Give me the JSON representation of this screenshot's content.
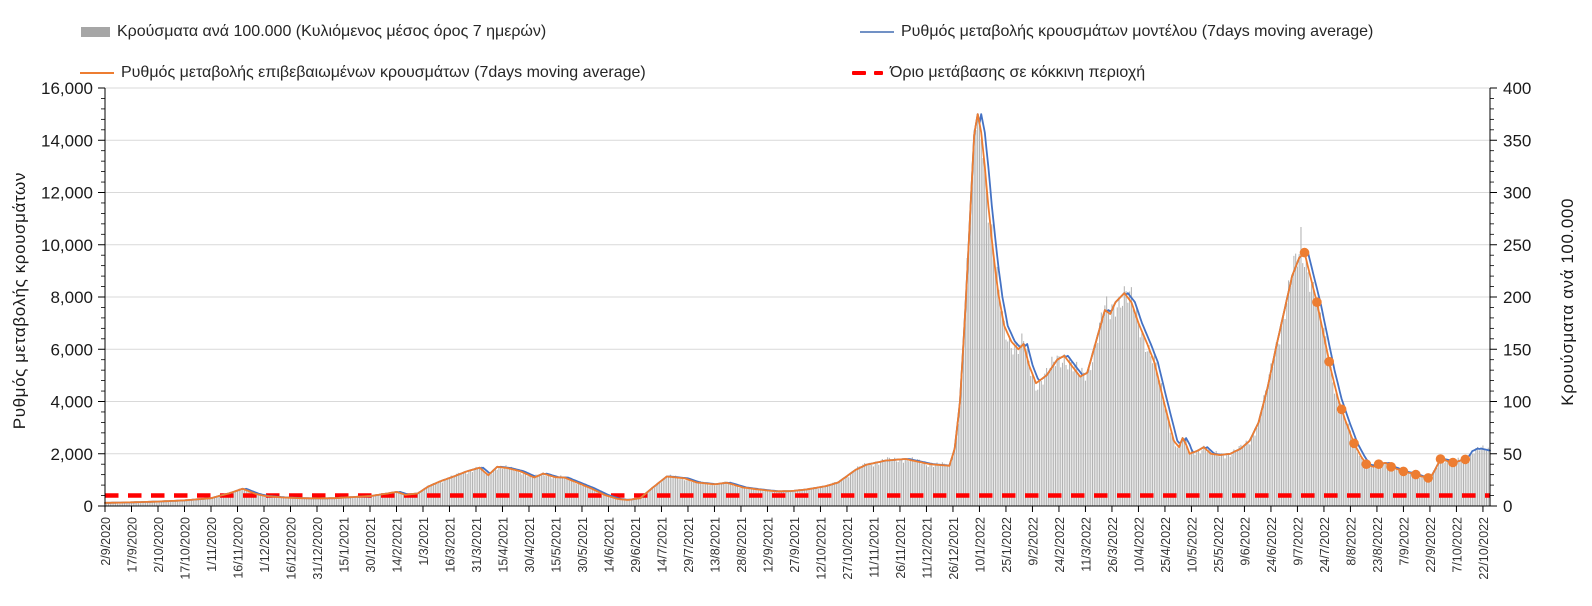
{
  "legend": {
    "items": [
      {
        "label": "Κρούσματα ανά 100.000 (Κυλιόμενος μέσος όρος 7 ημερών)",
        "swatch": "bar",
        "color": "#a6a6a6"
      },
      {
        "label": "Ρυθμός μεταβολής κρουσμάτων μοντέλου (7days moving average)",
        "swatch": "line",
        "color": "#4472c4"
      },
      {
        "label": "Ρυθμός μεταβολής επιβεβαιωμένων κρουσμάτων (7days moving average)",
        "swatch": "line",
        "color": "#ed7d31"
      },
      {
        "label": "Όριο μετάβασης σε κόκκινη περιοχή",
        "swatch": "dash",
        "color": "#ff0000"
      }
    ]
  },
  "chart_data": {
    "type": "bar",
    "subtype": "combo-daily-bars-plus-lines",
    "title": "",
    "left_axis": {
      "title": "Ρυθμός μεταβολής κρουσμάτων",
      "min": 0,
      "max": 16000,
      "step": 2000,
      "minor_step": 400,
      "tick_labels": [
        "0",
        "2,000",
        "4,000",
        "6,000",
        "8,000",
        "10,000",
        "12,000",
        "14,000",
        "16,000"
      ]
    },
    "right_axis": {
      "title": "Κρουύσματα ανά 100.000",
      "min": 0,
      "max": 400,
      "step": 50,
      "minor_step": 10,
      "tick_labels": [
        "0",
        "50",
        "100",
        "150",
        "200",
        "250",
        "300",
        "350",
        "400"
      ]
    },
    "x_axis": {
      "start_date": "2/9/2020",
      "end_date": "22/10/2022",
      "tick_interval_days": 15,
      "tick_labels": [
        "2/9/2020",
        "17/9/2020",
        "2/10/2020",
        "17/10/2020",
        "1/11/2020",
        "16/11/2020",
        "1/12/2020",
        "16/12/2020",
        "31/12/2020",
        "15/1/2021",
        "30/1/2021",
        "14/2/2021",
        "1/3/2021",
        "16/3/2021",
        "31/3/2021",
        "15/4/2021",
        "30/4/2021",
        "15/5/2021",
        "30/5/2021",
        "14/6/2021",
        "29/6/2021",
        "14/7/2021",
        "29/7/2021",
        "13/8/2021",
        "28/8/2021",
        "12/9/2021",
        "27/9/2021",
        "12/10/2021",
        "27/10/2021",
        "11/11/2021",
        "26/11/2021",
        "11/12/2021",
        "26/12/2021",
        "10/1/2022",
        "25/1/2022",
        "9/2/2022",
        "24/2/2022",
        "11/3/2022",
        "26/3/2022",
        "10/4/2022",
        "25/4/2022",
        "10/5/2022",
        "25/5/2022",
        "9/6/2022",
        "24/6/2022",
        "9/7/2022",
        "24/7/2022",
        "8/8/2022",
        "23/8/2022",
        "7/9/2022",
        "22/9/2022",
        "7/10/2022",
        "22/10/2022"
      ]
    },
    "grid": {
      "horizontal": true,
      "vertical": false,
      "color": "#d9d9d9"
    },
    "threshold": {
      "name": "Όριο μετάβασης σε κόκκινη περιοχή",
      "value_right_axis": 10,
      "color": "#ff0000",
      "style": "dashed"
    },
    "days_total": 784,
    "rate_keypoints": [
      [
        0,
        120
      ],
      [
        15,
        140
      ],
      [
        30,
        170
      ],
      [
        45,
        215
      ],
      [
        60,
        300
      ],
      [
        70,
        480
      ],
      [
        78,
        660
      ],
      [
        85,
        470
      ],
      [
        90,
        390
      ],
      [
        100,
        330
      ],
      [
        110,
        300
      ],
      [
        120,
        290
      ],
      [
        130,
        300
      ],
      [
        140,
        340
      ],
      [
        150,
        380
      ],
      [
        160,
        480
      ],
      [
        165,
        540
      ],
      [
        170,
        430
      ],
      [
        177,
        480
      ],
      [
        183,
        745
      ],
      [
        190,
        950
      ],
      [
        197,
        1120
      ],
      [
        205,
        1330
      ],
      [
        212,
        1465
      ],
      [
        217,
        1180
      ],
      [
        222,
        1500
      ],
      [
        228,
        1450
      ],
      [
        235,
        1330
      ],
      [
        243,
        1090
      ],
      [
        248,
        1240
      ],
      [
        255,
        1100
      ],
      [
        260,
        1090
      ],
      [
        267,
        900
      ],
      [
        275,
        680
      ],
      [
        283,
        420
      ],
      [
        290,
        270
      ],
      [
        296,
        230
      ],
      [
        303,
        300
      ],
      [
        310,
        700
      ],
      [
        318,
        1130
      ],
      [
        328,
        1060
      ],
      [
        335,
        900
      ],
      [
        345,
        830
      ],
      [
        352,
        890
      ],
      [
        361,
        710
      ],
      [
        370,
        630
      ],
      [
        380,
        560
      ],
      [
        388,
        570
      ],
      [
        397,
        630
      ],
      [
        408,
        760
      ],
      [
        415,
        900
      ],
      [
        425,
        1390
      ],
      [
        431,
        1580
      ],
      [
        442,
        1740
      ],
      [
        453,
        1800
      ],
      [
        460,
        1700
      ],
      [
        467,
        1600
      ],
      [
        474,
        1560
      ],
      [
        478,
        1540
      ],
      [
        481,
        2200
      ],
      [
        484,
        4000
      ],
      [
        487,
        7500
      ],
      [
        490,
        11500
      ],
      [
        492,
        14200
      ],
      [
        494,
        15000
      ],
      [
        496,
        14300
      ],
      [
        498,
        13000
      ],
      [
        500,
        11500
      ],
      [
        502,
        10200
      ],
      [
        504,
        9000
      ],
      [
        506,
        8000
      ],
      [
        509,
        6900
      ],
      [
        513,
        6300
      ],
      [
        517,
        6000
      ],
      [
        520,
        6200
      ],
      [
        523,
        5400
      ],
      [
        527,
        4700
      ],
      [
        533,
        5000
      ],
      [
        539,
        5600
      ],
      [
        543,
        5750
      ],
      [
        548,
        5300
      ],
      [
        552,
        4950
      ],
      [
        556,
        5100
      ],
      [
        561,
        6300
      ],
      [
        566,
        7500
      ],
      [
        569,
        7350
      ],
      [
        572,
        7800
      ],
      [
        577,
        8150
      ],
      [
        581,
        7800
      ],
      [
        585,
        7000
      ],
      [
        590,
        6200
      ],
      [
        594,
        5500
      ],
      [
        599,
        4100
      ],
      [
        602,
        3300
      ],
      [
        605,
        2500
      ],
      [
        608,
        2250
      ],
      [
        610,
        2600
      ],
      [
        612,
        2350
      ],
      [
        614,
        2000
      ],
      [
        618,
        2100
      ],
      [
        622,
        2250
      ],
      [
        626,
        2000
      ],
      [
        631,
        1950
      ],
      [
        637,
        2000
      ],
      [
        643,
        2200
      ],
      [
        648,
        2500
      ],
      [
        653,
        3200
      ],
      [
        658,
        4500
      ],
      [
        663,
        6100
      ],
      [
        668,
        7600
      ],
      [
        672,
        8800
      ],
      [
        676,
        9500
      ],
      [
        679,
        9700
      ],
      [
        683,
        8600
      ],
      [
        686,
        7800
      ],
      [
        690,
        6500
      ],
      [
        694,
        5200
      ],
      [
        698,
        4100
      ],
      [
        702,
        3300
      ],
      [
        707,
        2400
      ],
      [
        711,
        1900
      ],
      [
        714,
        1600
      ],
      [
        718,
        1500
      ],
      [
        721,
        1600
      ],
      [
        725,
        1650
      ],
      [
        728,
        1500
      ],
      [
        732,
        1400
      ],
      [
        736,
        1300
      ],
      [
        740,
        1250
      ],
      [
        744,
        1150
      ],
      [
        748,
        1100
      ],
      [
        750,
        1050
      ],
      [
        753,
        1400
      ],
      [
        756,
        1800
      ],
      [
        759,
        1750
      ],
      [
        762,
        1650
      ],
      [
        765,
        1700
      ],
      [
        768,
        1750
      ],
      [
        771,
        1800
      ],
      [
        774,
        2100
      ],
      [
        777,
        2200
      ],
      [
        780,
        2150
      ],
      [
        784,
        2100
      ]
    ],
    "series": [
      {
        "name": "Κρούσματα ανά 100.000 (Κυλιόμενος μέσος όρος 7 ημερών)",
        "type": "bar",
        "axis": "right",
        "color": "#b2b2b2",
        "scale_divisor": 40,
        "end_day": 784,
        "spikes_right_axis": [
          [
            677,
            267
          ]
        ]
      },
      {
        "name": "Ρυθμός μεταβολής κρουσμάτων μοντέλου (7days moving average)",
        "type": "line",
        "axis": "left",
        "color": "#4472c4",
        "lag_days": 2,
        "end_day": 784
      },
      {
        "name": "Ρυθμός μεταβολής επιβεβαιωμένων κρουσμάτων (7days moving average)",
        "type": "line",
        "axis": "left",
        "color": "#ed7d31",
        "end_day": 771,
        "marker_days": [
          679,
          686,
          693,
          700,
          707,
          714,
          721,
          728,
          735,
          742,
          749,
          756,
          763,
          770
        ]
      }
    ]
  }
}
